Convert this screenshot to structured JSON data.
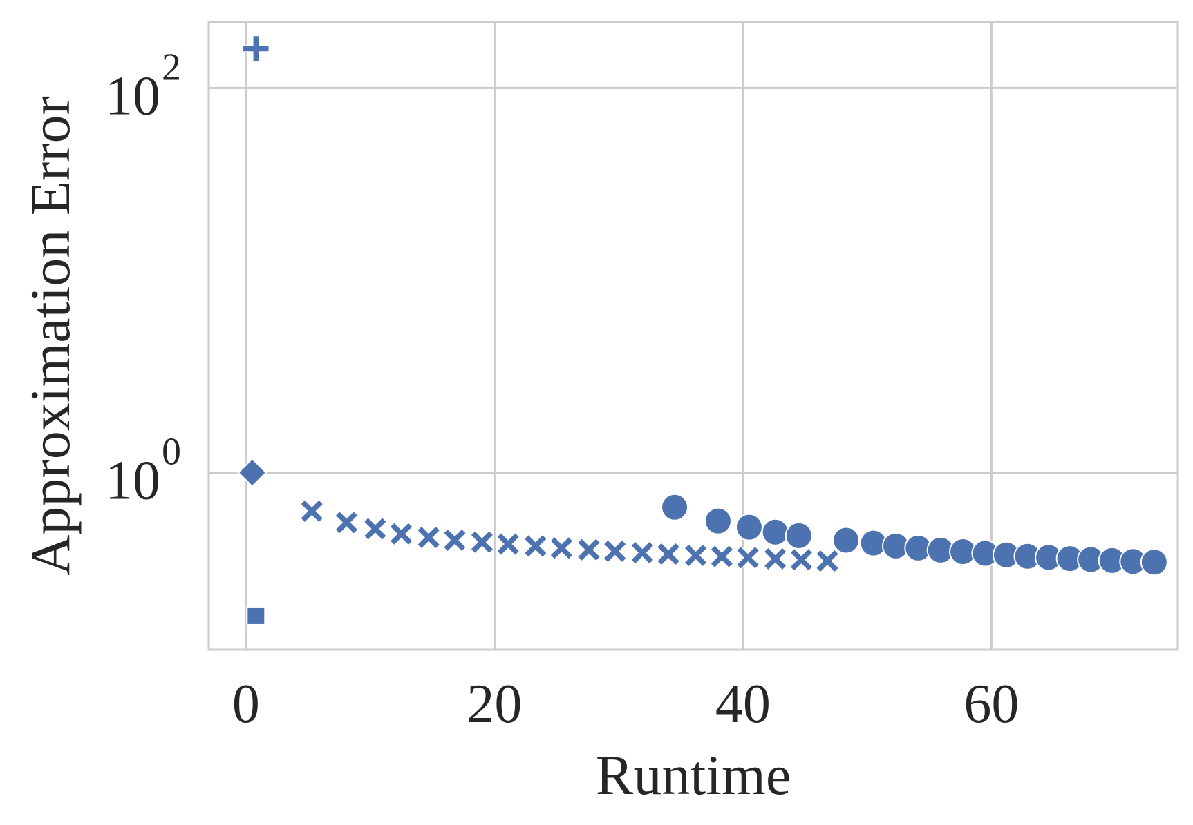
{
  "chart_data": {
    "type": "scatter",
    "title": "",
    "xlabel": "Runtime",
    "ylabel": "Approximation Error",
    "x_scale": "linear",
    "y_scale": "log",
    "xlim": [
      -3,
      75
    ],
    "ylim": [
      0.12,
      220
    ],
    "x_ticks": [
      0,
      20,
      40,
      60
    ],
    "x_tick_labels": [
      "0",
      "20",
      "40",
      "60"
    ],
    "y_ticks": [
      1,
      100
    ],
    "y_tick_labels": [
      {
        "base": "10",
        "exp": "0"
      },
      {
        "base": "10",
        "exp": "2"
      }
    ],
    "grid": true,
    "legend": false,
    "color": "#4c72b0",
    "series": [
      {
        "marker": "plus",
        "points": [
          [
            0.8,
            160
          ]
        ]
      },
      {
        "marker": "diamond",
        "points": [
          [
            0.5,
            1.0
          ]
        ]
      },
      {
        "marker": "square",
        "points": [
          [
            0.8,
            0.18
          ]
        ]
      },
      {
        "marker": "x",
        "points": [
          [
            5.3,
            0.63
          ],
          [
            8.1,
            0.55
          ],
          [
            10.4,
            0.51
          ],
          [
            12.5,
            0.48
          ],
          [
            14.7,
            0.46
          ],
          [
            16.8,
            0.445
          ],
          [
            19.0,
            0.435
          ],
          [
            21.1,
            0.425
          ],
          [
            23.3,
            0.415
          ],
          [
            25.4,
            0.405
          ],
          [
            27.6,
            0.397
          ],
          [
            29.7,
            0.39
          ],
          [
            31.9,
            0.383
          ],
          [
            34.0,
            0.377
          ],
          [
            36.2,
            0.371
          ],
          [
            38.3,
            0.366
          ],
          [
            40.4,
            0.361
          ],
          [
            42.6,
            0.356
          ],
          [
            44.7,
            0.352
          ],
          [
            46.8,
            0.347
          ]
        ]
      },
      {
        "marker": "circle",
        "points": [
          [
            34.5,
            0.66
          ],
          [
            38.0,
            0.56
          ],
          [
            40.5,
            0.52
          ],
          [
            42.6,
            0.49
          ],
          [
            44.5,
            0.47
          ],
          [
            48.3,
            0.445
          ],
          [
            50.5,
            0.43
          ],
          [
            52.3,
            0.415
          ],
          [
            54.1,
            0.405
          ],
          [
            55.9,
            0.395
          ],
          [
            57.7,
            0.388
          ],
          [
            59.5,
            0.38
          ],
          [
            61.2,
            0.373
          ],
          [
            62.9,
            0.367
          ],
          [
            64.6,
            0.362
          ],
          [
            66.3,
            0.357
          ],
          [
            68.0,
            0.353
          ],
          [
            69.7,
            0.349
          ],
          [
            71.4,
            0.345
          ],
          [
            73.1,
            0.342
          ]
        ]
      }
    ]
  }
}
